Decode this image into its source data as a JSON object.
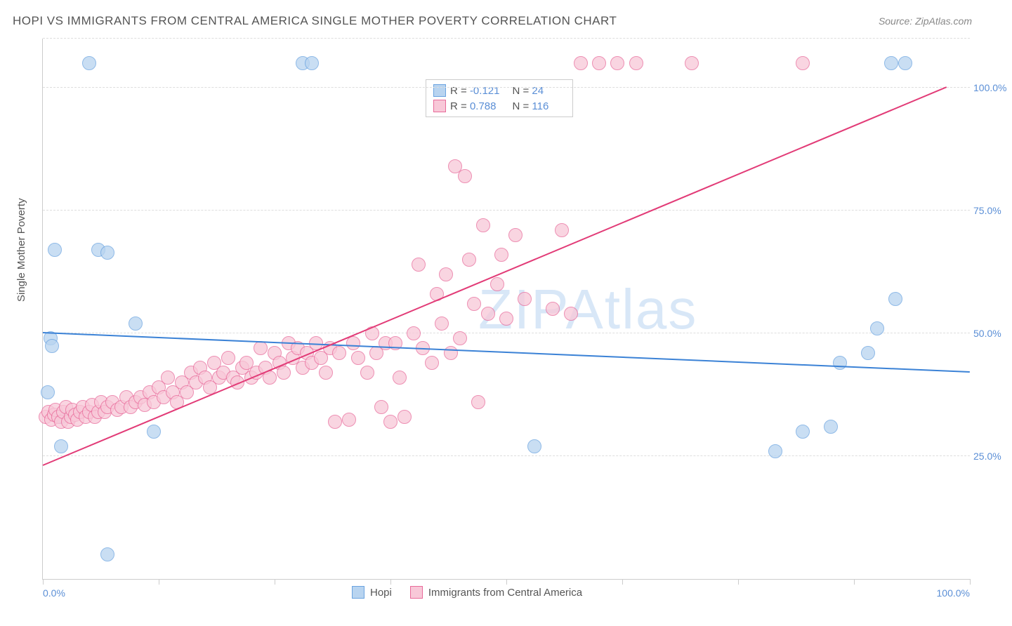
{
  "title": "HOPI VS IMMIGRANTS FROM CENTRAL AMERICA SINGLE MOTHER POVERTY CORRELATION CHART",
  "source": "Source: ZipAtlas.com",
  "ylabel": "Single Mother Poverty",
  "watermark": "ZIPAtlas",
  "chart": {
    "type": "scatter",
    "xlim": [
      0,
      100
    ],
    "ylim": [
      0,
      110
    ],
    "y_gridlines": [
      25,
      50,
      75,
      100,
      110
    ],
    "y_tick_labels": {
      "25": "25.0%",
      "50": "50.0%",
      "75": "75.0%",
      "100": "100.0%"
    },
    "x_ticks": [
      0,
      12.5,
      25,
      37.5,
      50,
      62.5,
      75,
      87.5,
      100
    ],
    "x_tick_labels": {
      "0": "0.0%",
      "100": "100.0%"
    },
    "background_color": "#ffffff",
    "grid_color": "#dddddd",
    "axis_color": "#cccccc",
    "label_color": "#5b8fd6",
    "series": [
      {
        "name": "Hopi",
        "color_fill": "#b8d4f0",
        "color_stroke": "#6aa3e0",
        "marker_radius": 9,
        "R": "-0.121",
        "N": "24",
        "trend": {
          "x1": 0,
          "y1": 50,
          "x2": 100,
          "y2": 42,
          "color": "#3b82d6",
          "width": 2
        },
        "points": [
          [
            0.5,
            38
          ],
          [
            0.8,
            49
          ],
          [
            1,
            47.5
          ],
          [
            1.3,
            67
          ],
          [
            2,
            33
          ],
          [
            2,
            27
          ],
          [
            5,
            105
          ],
          [
            6,
            67
          ],
          [
            7,
            66.5
          ],
          [
            7,
            5
          ],
          [
            10,
            52
          ],
          [
            12,
            30
          ],
          [
            28,
            105
          ],
          [
            29,
            105
          ],
          [
            53,
            27
          ],
          [
            79,
            26
          ],
          [
            82,
            30
          ],
          [
            85,
            31
          ],
          [
            86,
            44
          ],
          [
            89,
            46
          ],
          [
            90,
            51
          ],
          [
            91.5,
            105
          ],
          [
            92,
            57
          ],
          [
            93,
            105
          ]
        ]
      },
      {
        "name": "Immigrants from Central America",
        "color_fill": "#f8c8d8",
        "color_stroke": "#e86a9a",
        "marker_radius": 9,
        "R": "0.788",
        "N": "116",
        "trend": {
          "x1": 0,
          "y1": 23,
          "x2": 97.5,
          "y2": 100,
          "color": "#e23b77",
          "width": 2
        },
        "points": [
          [
            0.3,
            33
          ],
          [
            0.6,
            34
          ],
          [
            0.9,
            32.5
          ],
          [
            1.2,
            33.5
          ],
          [
            1.4,
            34.5
          ],
          [
            1.7,
            33
          ],
          [
            2,
            32
          ],
          [
            2.2,
            34
          ],
          [
            2.5,
            35
          ],
          [
            2.7,
            32
          ],
          [
            3,
            33
          ],
          [
            3.2,
            34.5
          ],
          [
            3.5,
            33.5
          ],
          [
            3.7,
            32.5
          ],
          [
            4,
            34
          ],
          [
            4.3,
            35
          ],
          [
            4.6,
            33
          ],
          [
            5,
            34
          ],
          [
            5.3,
            35.5
          ],
          [
            5.6,
            33
          ],
          [
            6,
            34
          ],
          [
            6.3,
            36
          ],
          [
            6.7,
            34
          ],
          [
            7,
            35
          ],
          [
            7.5,
            36
          ],
          [
            8,
            34.5
          ],
          [
            8.5,
            35
          ],
          [
            9,
            37
          ],
          [
            9.5,
            35
          ],
          [
            10,
            36
          ],
          [
            10.5,
            37
          ],
          [
            11,
            35.5
          ],
          [
            11.5,
            38
          ],
          [
            12,
            36
          ],
          [
            12.5,
            39
          ],
          [
            13,
            37
          ],
          [
            13.5,
            41
          ],
          [
            14,
            38
          ],
          [
            14.5,
            36
          ],
          [
            15,
            40
          ],
          [
            15.5,
            38
          ],
          [
            16,
            42
          ],
          [
            16.5,
            40
          ],
          [
            17,
            43
          ],
          [
            17.5,
            41
          ],
          [
            18,
            39
          ],
          [
            18.5,
            44
          ],
          [
            19,
            41
          ],
          [
            19.5,
            42
          ],
          [
            20,
            45
          ],
          [
            20.5,
            41
          ],
          [
            21,
            40
          ],
          [
            21.5,
            43
          ],
          [
            22,
            44
          ],
          [
            22.5,
            41
          ],
          [
            23,
            42
          ],
          [
            23.5,
            47
          ],
          [
            24,
            43
          ],
          [
            24.5,
            41
          ],
          [
            25,
            46
          ],
          [
            25.5,
            44
          ],
          [
            26,
            42
          ],
          [
            26.5,
            48
          ],
          [
            27,
            45
          ],
          [
            27.5,
            47
          ],
          [
            28,
            43
          ],
          [
            28.5,
            46
          ],
          [
            29,
            44
          ],
          [
            29.5,
            48
          ],
          [
            30,
            45
          ],
          [
            30.5,
            42
          ],
          [
            31,
            47
          ],
          [
            31.5,
            32
          ],
          [
            32,
            46
          ],
          [
            33,
            32.5
          ],
          [
            33.5,
            48
          ],
          [
            34,
            45
          ],
          [
            35,
            42
          ],
          [
            35.5,
            50
          ],
          [
            36,
            46
          ],
          [
            36.5,
            35
          ],
          [
            37,
            48
          ],
          [
            37.5,
            32
          ],
          [
            38,
            48
          ],
          [
            38.5,
            41
          ],
          [
            39,
            33
          ],
          [
            40,
            50
          ],
          [
            40.5,
            64
          ],
          [
            41,
            47
          ],
          [
            42,
            44
          ],
          [
            42.5,
            58
          ],
          [
            43,
            52
          ],
          [
            43.5,
            62
          ],
          [
            44,
            46
          ],
          [
            44.5,
            84
          ],
          [
            45,
            49
          ],
          [
            45.5,
            82
          ],
          [
            46,
            65
          ],
          [
            46.5,
            56
          ],
          [
            47,
            36
          ],
          [
            47.5,
            72
          ],
          [
            48,
            54
          ],
          [
            49,
            60
          ],
          [
            49.5,
            66
          ],
          [
            50,
            53
          ],
          [
            51,
            70
          ],
          [
            52,
            57
          ],
          [
            55,
            55
          ],
          [
            56,
            71
          ],
          [
            57,
            54
          ],
          [
            58,
            105
          ],
          [
            60,
            105
          ],
          [
            62,
            105
          ],
          [
            64,
            105
          ],
          [
            70,
            105
          ],
          [
            82,
            105
          ]
        ]
      }
    ]
  },
  "legend_bottom": [
    {
      "label": "Hopi",
      "fill": "#b8d4f0",
      "stroke": "#6aa3e0"
    },
    {
      "label": "Immigrants from Central America",
      "fill": "#f8c8d8",
      "stroke": "#e86a9a"
    }
  ]
}
